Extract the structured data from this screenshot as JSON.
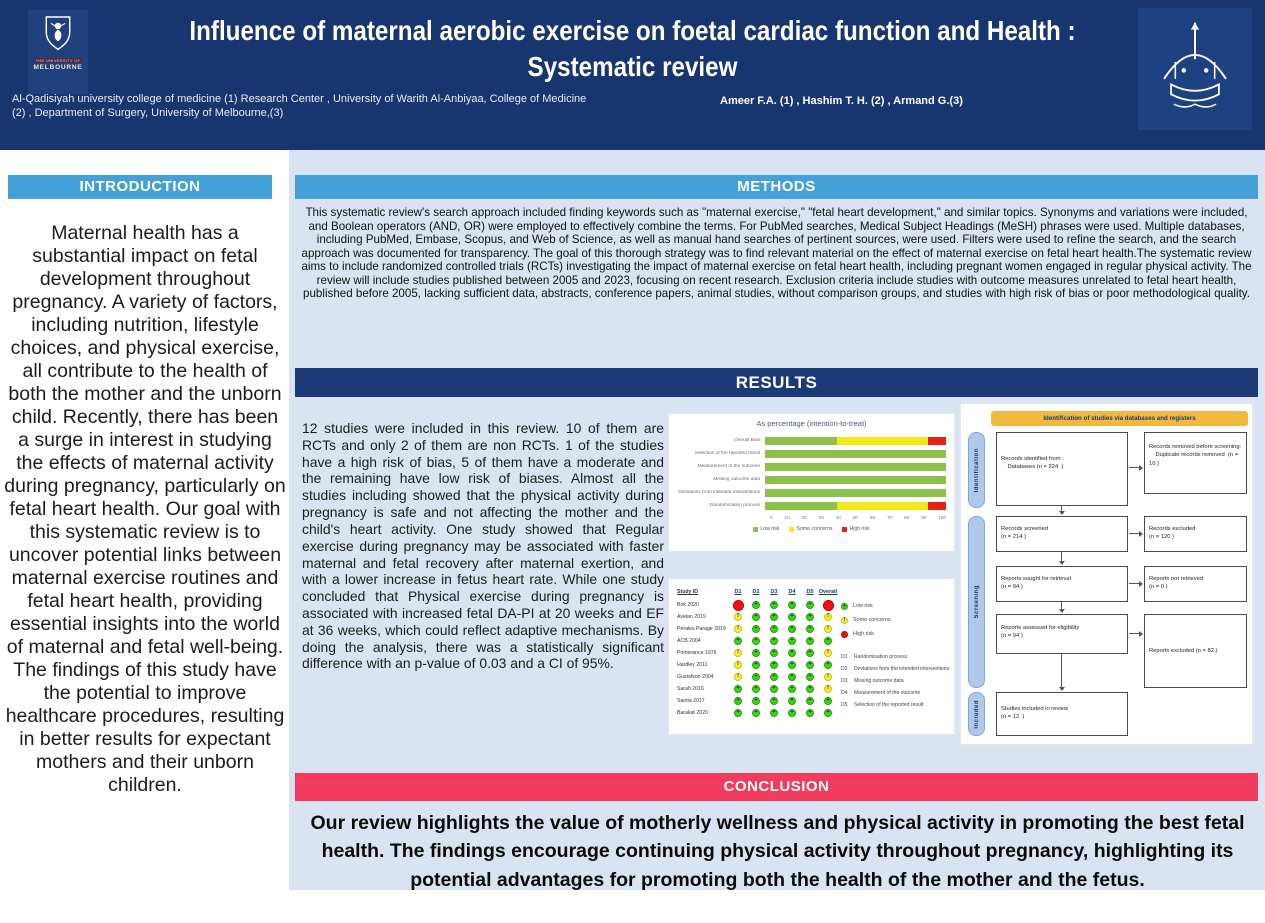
{
  "page": {
    "background": "#ffffff",
    "content_background": "#d9e3f1"
  },
  "colors": {
    "header_navy": "#17356e",
    "section_blue": "#45a0d7",
    "results_navy": "#1b3a76",
    "conclusion_pink": "#f23b5f",
    "low_risk_green": "#3bd41c",
    "some_concerns_yellow": "#f6ee32",
    "high_risk_red": "#ff0d0d",
    "prisma_banner_amber": "#f1b93e",
    "prisma_stage_blue": "#aec9ea"
  },
  "header": {
    "title_line1": "Influence of maternal aerobic exercise on foetal cardiac function and Health :",
    "title_line2": "Systematic review",
    "affiliations": "Al-Qadisiyah university college of medicine (1)  Research Center , University of Warith Al-Anbiyaa, College of Medicine (2) ,  Department of Surgery, University of Melbourne,(3)",
    "authors": "Ameer F.A. (1) , Hashim T. H. (2)  , Armand G.(3)",
    "left_logo_caption_1": "THE UNIVERSITY OF",
    "left_logo_caption_2": "MELBOURNE",
    "left_logo_name": "university-of-melbourne-crest",
    "right_logo_name": "university-of-warith-al-anbiyaa-crest"
  },
  "sections": {
    "introduction": {
      "heading": "INTRODUCTION",
      "body": "Maternal health has a substantial impact on fetal development throughout pregnancy. A variety of factors, including nutrition, lifestyle choices, and physical exercise, all contribute to the health of both the mother and the unborn child. Recently, there has been a surge in interest in studying the effects of maternal activity during pregnancy, particularly on fetal heart health. Our goal with this systematic review is to uncover potential links between maternal exercise routines and fetal heart health, providing essential insights into the world of maternal and fetal well-being. The findings of this study have the potential to improve healthcare procedures, resulting in better results for expectant mothers and their unborn children."
    },
    "methods": {
      "heading": "METHODS",
      "body": "This systematic review's search approach included finding keywords such as \"maternal exercise,\" \"fetal heart development,\" and similar topics. Synonyms and variations were included, and Boolean operators (AND, OR) were employed to effectively combine the terms. For PubMed searches, Medical Subject Headings (MeSH) phrases were used. Multiple databases, including PubMed, Embase, Scopus, and Web of Science, as well as manual hand searches of pertinent sources, were used. Filters were used to refine the search, and the search approach was documented for transparency. The goal of this thorough strategy was to find relevant material on the effect of maternal exercise on fetal heart health.The systematic review aims to include randomized controlled trials (RCTs) investigating the impact of maternal exercise on fetal heart health, including pregnant women engaged in regular physical activity. The review will include studies published between 2005 and 2023, focusing on recent research. Exclusion criteria include studies with outcome measures unrelated to fetal heart health, published before 2005, lacking sufficient data, abstracts, conference papers, animal studies, without comparison groups, and studies with high risk of bias or poor methodological quality."
    },
    "results": {
      "heading": "RESULTS",
      "body": "12 studies were included in this review. 10 of them are RCTs and only 2 of them are non RCTs. 1 of the studies have a high risk of bias, 5 of them have a moderate and the remaining have low risk of biases. Almost all the studies including showed that the physical activity during pregnancy is safe and not affecting the mother and the child's heart activity. One study showed that Regular exercise during pregnancy may be associated with faster maternal and fetal recovery after maternal exertion, and with a lower increase in fetus heart rate. While one study concluded that Physical exercise during pregnancy is associated with increased fetal DA-PI at 20 weeks and EF at 36 weeks, which could reflect adaptive mechanisms. By doing the analysis, there was a statistically significant difference with an p-value of 0.03 and a CI of 95%."
    },
    "conclusion": {
      "heading": "CONCLUSION",
      "body": "Our review highlights the value of motherly wellness and physical activity in promoting the best fetal health. The findings encourage continuing physical activity throughout pregnancy, highlighting its potential advantages for promoting both the health of the mother and the fetus."
    }
  },
  "chart_data": [
    {
      "type": "bar",
      "orientation": "horizontal",
      "stacked": true,
      "title": "As percentage (intention-to-treat)",
      "categories": [
        "Overall Bias",
        "Selection of the reported result",
        "Measurement of the outcome",
        "Missing outcome data",
        "Deviations from intended interventions",
        "Randomization process"
      ],
      "series": [
        {
          "name": "Low risk",
          "color": "#8cbf4c",
          "values": [
            40,
            100,
            100,
            100,
            100,
            40
          ]
        },
        {
          "name": "Some concerns",
          "color": "#f2ea16",
          "values": [
            50,
            0,
            0,
            0,
            0,
            50
          ]
        },
        {
          "name": "High risk",
          "color": "#e2231a",
          "values": [
            10,
            0,
            0,
            0,
            0,
            10
          ]
        }
      ],
      "xlim": [
        0,
        100
      ],
      "x_ticks": [
        0,
        10,
        20,
        30,
        40,
        50,
        60,
        70,
        80,
        90,
        100
      ],
      "legend_position": "bottom",
      "grid": false
    },
    {
      "type": "heatmap",
      "name": "risk-of-bias-traffic-light-plot",
      "columns": [
        "Study ID",
        "D1",
        "D2",
        "D3",
        "D4",
        "D5",
        "Overall"
      ],
      "symbols": {
        "low": "+",
        "some": "!",
        "high": "-"
      },
      "rows": [
        {
          "study": "Brik 2020",
          "judgements": [
            "high",
            "low",
            "low",
            "low",
            "low",
            "high"
          ]
        },
        {
          "study": "Avelan 2019",
          "judgements": [
            "some",
            "low",
            "low",
            "low",
            "low",
            "some"
          ]
        },
        {
          "study": "Perales Parage 2019",
          "judgements": [
            "some",
            "low",
            "low",
            "low",
            "low",
            "some"
          ]
        },
        {
          "study": "ACB 2004",
          "judgements": [
            "low",
            "low",
            "low",
            "low",
            "low",
            "low"
          ]
        },
        {
          "study": "Pomerance 1976",
          "judgements": [
            "some",
            "low",
            "low",
            "low",
            "low",
            "some"
          ]
        },
        {
          "study": "Hardley 2011",
          "judgements": [
            "some",
            "low",
            "low",
            "low",
            "low",
            "low"
          ]
        },
        {
          "study": "Gustafson 2004",
          "judgements": [
            "some",
            "low",
            "low",
            "low",
            "low",
            "some"
          ]
        },
        {
          "study": "Sarah 2016",
          "judgements": [
            "low",
            "low",
            "low",
            "low",
            "low",
            "some"
          ]
        },
        {
          "study": "Santia 2017",
          "judgements": [
            "low",
            "low",
            "low",
            "low",
            "low",
            "low"
          ]
        },
        {
          "study": "Barakat 2020",
          "judgements": [
            "low",
            "low",
            "low",
            "low",
            "low",
            "low"
          ]
        }
      ],
      "legend": [
        {
          "judgement": "low",
          "label": "Low risk"
        },
        {
          "judgement": "some",
          "label": "Some concerns"
        },
        {
          "judgement": "high",
          "label": "High risk"
        }
      ],
      "domains": [
        {
          "key": "D1",
          "label": "Randomisation process"
        },
        {
          "key": "D2",
          "label": "Deviations from the intended interventions"
        },
        {
          "key": "D3",
          "label": "Missing outcome data"
        },
        {
          "key": "D4",
          "label": "Measurement of the outcome"
        },
        {
          "key": "D5",
          "label": "Selection of the reported result"
        }
      ]
    }
  ],
  "prisma": {
    "banner": "Identification of studies via databases and registers",
    "stages": [
      "Identification",
      "Screening",
      "Included"
    ],
    "boxes": {
      "identified": "Records identified from :\n    Databases (n = 224  )",
      "removed": "Records removed before screening:\n    Duplicate records removed  (n = 10 )",
      "screened": "Records screened\n(n = 214 )",
      "excluded": "Records excluded\n(n = 120 )",
      "sought": "Reports sought for retrieval\n(n = 94 )",
      "not_retrieved": "Reports not retrieved\n(n = 0 )",
      "assessed": "Reports assessed for eligibility\n(n = 94 )",
      "reports_excluded": "Reports excluded (n = 82 )",
      "included": "Studies included in review\n(n = 12  )"
    }
  }
}
